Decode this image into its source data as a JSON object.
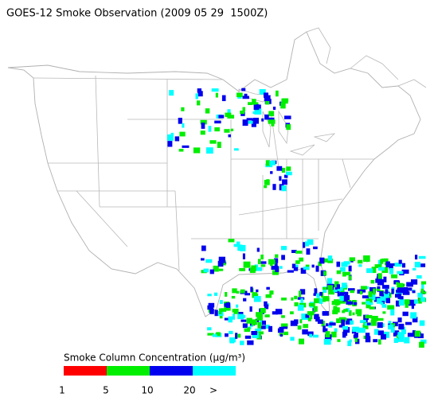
{
  "title": "GOES-12 Smoke Observation (2009 05 29  1500Z)",
  "legend": {
    "title": "Smoke Column Concentration (μg/m³)",
    "colors": [
      "#ff0000",
      "#00ee00",
      "#0000ee",
      "#00ffff"
    ],
    "labels": [
      "1",
      "5",
      "10",
      "20",
      ">"
    ]
  }
}
